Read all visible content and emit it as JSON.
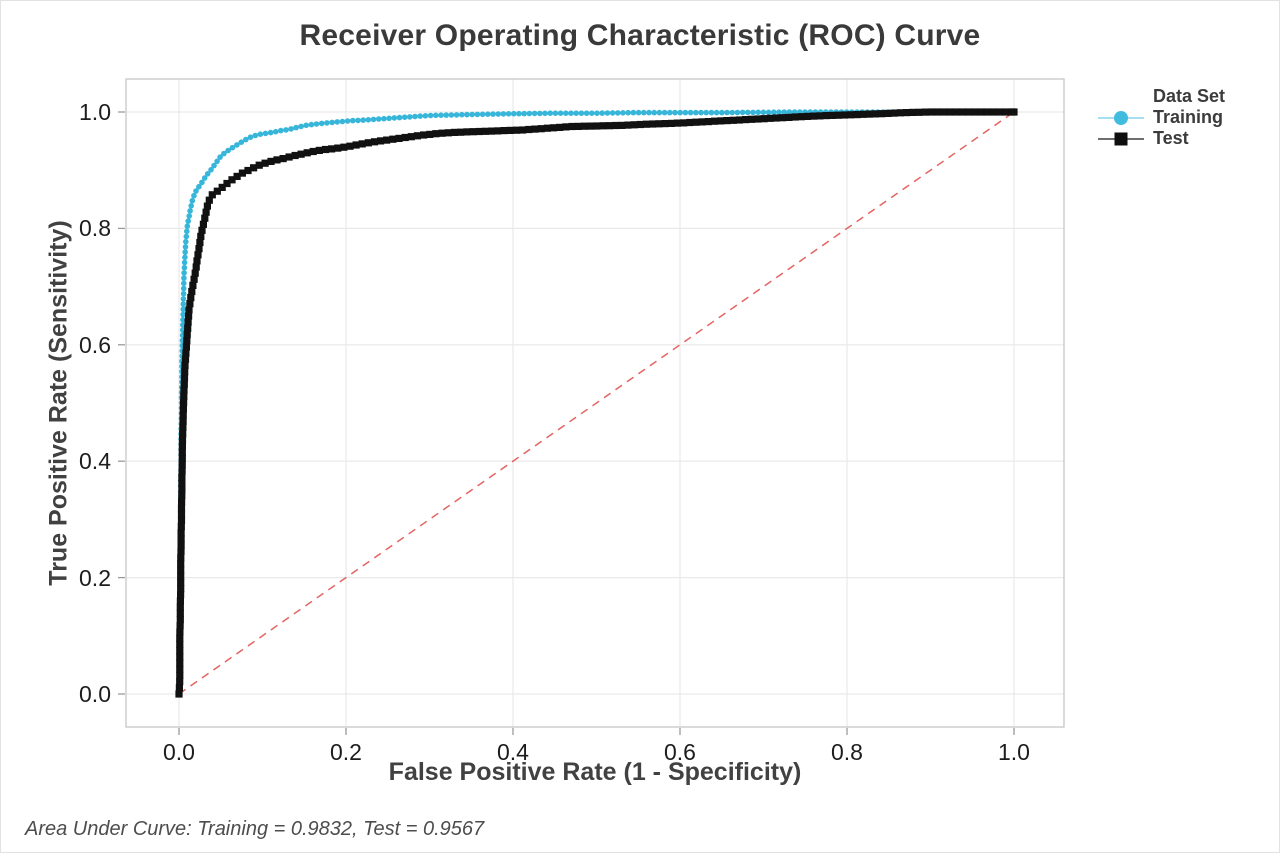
{
  "header": {
    "title": "Receiver Operating Characteristic (ROC) Curve"
  },
  "axes": {
    "x": {
      "label": "False Positive Rate (1 - Specificity)"
    },
    "y": {
      "label": "True Positive Rate (Sensitivity)"
    }
  },
  "legend": {
    "title": "Data Set",
    "entries": [
      {
        "label": "Training",
        "marker": "circle",
        "marker_color": "#3fbcde",
        "line_color": "#a8dff0"
      },
      {
        "label": "Test",
        "marker": "square",
        "marker_color": "#0f0f0f",
        "line_color": "#6f6f6f"
      }
    ]
  },
  "footer": {
    "text": "Area Under Curve: Training = 0.9832, Test = 0.9567",
    "auc_training": "0.9832",
    "auc_test": "0.9567"
  },
  "colors": {
    "grid": "#e9e9e9",
    "plot_border": "#c6c6c6",
    "tick_mark": "#9a9a9a",
    "reference_line": "#e25451",
    "training": "#38b6da",
    "test": "#111111"
  },
  "chart_data": {
    "type": "line",
    "title": "Receiver Operating Characteristic (ROC) Curve",
    "xlabel": "False Positive Rate (1 - Specificity)",
    "ylabel": "True Positive Rate (Sensitivity)",
    "xlim": [
      0,
      1
    ],
    "ylim": [
      0,
      1
    ],
    "xticks": [
      0.0,
      0.2,
      0.4,
      0.6,
      0.8,
      1.0
    ],
    "yticks": [
      0.0,
      0.2,
      0.4,
      0.6,
      0.8,
      1.0
    ],
    "grid": true,
    "legend_position": "right",
    "legend_title": "Data Set",
    "reference_line": {
      "type": "diagonal",
      "from": [
        0,
        0
      ],
      "to": [
        1,
        1
      ],
      "style": "dashed",
      "color": "#e25451"
    },
    "annotation": "Area Under Curve: Training = 0.9832, Test = 0.9567",
    "auc": {
      "Training": 0.9832,
      "Test": 0.9567
    },
    "series": [
      {
        "name": "Training",
        "marker": "circle",
        "color": "#38b6da",
        "points": [
          [
            0,
            0
          ],
          [
            0.001,
            0.03
          ],
          [
            0.001,
            0.06
          ],
          [
            0.001,
            0.09
          ],
          [
            0.001,
            0.12
          ],
          [
            0.001,
            0.15
          ],
          [
            0.0015,
            0.18
          ],
          [
            0.0015,
            0.21
          ],
          [
            0.0015,
            0.24
          ],
          [
            0.002,
            0.27
          ],
          [
            0.002,
            0.3
          ],
          [
            0.002,
            0.33
          ],
          [
            0.002,
            0.36
          ],
          [
            0.0025,
            0.39
          ],
          [
            0.0025,
            0.42
          ],
          [
            0.0025,
            0.45
          ],
          [
            0.003,
            0.48
          ],
          [
            0.003,
            0.51
          ],
          [
            0.0035,
            0.54
          ],
          [
            0.0035,
            0.57
          ],
          [
            0.004,
            0.6
          ],
          [
            0.0045,
            0.63
          ],
          [
            0.005,
            0.66
          ],
          [
            0.0055,
            0.69
          ],
          [
            0.006,
            0.72
          ],
          [
            0.007,
            0.75
          ],
          [
            0.008,
            0.775
          ],
          [
            0.009,
            0.79
          ],
          [
            0.01,
            0.805
          ],
          [
            0.012,
            0.82
          ],
          [
            0.014,
            0.835
          ],
          [
            0.016,
            0.848
          ],
          [
            0.018,
            0.857
          ],
          [
            0.021,
            0.866
          ],
          [
            0.024,
            0.872
          ],
          [
            0.027,
            0.878
          ],
          [
            0.03,
            0.885
          ],
          [
            0.034,
            0.893
          ],
          [
            0.038,
            0.9
          ],
          [
            0.042,
            0.908
          ],
          [
            0.046,
            0.916
          ],
          [
            0.05,
            0.924
          ],
          [
            0.056,
            0.931
          ],
          [
            0.062,
            0.937
          ],
          [
            0.07,
            0.944
          ],
          [
            0.078,
            0.951
          ],
          [
            0.086,
            0.957
          ],
          [
            0.094,
            0.961
          ],
          [
            0.102,
            0.963
          ],
          [
            0.112,
            0.965
          ],
          [
            0.122,
            0.968
          ],
          [
            0.132,
            0.97
          ],
          [
            0.142,
            0.974
          ],
          [
            0.152,
            0.977
          ],
          [
            0.162,
            0.979
          ],
          [
            0.175,
            0.981
          ],
          [
            0.19,
            0.983
          ],
          [
            0.205,
            0.985
          ],
          [
            0.22,
            0.986
          ],
          [
            0.24,
            0.988
          ],
          [
            0.26,
            0.99
          ],
          [
            0.28,
            0.992
          ],
          [
            0.3,
            0.994
          ],
          [
            0.33,
            0.995
          ],
          [
            0.36,
            0.996
          ],
          [
            0.4,
            0.997
          ],
          [
            0.45,
            0.998
          ],
          [
            0.5,
            0.998
          ],
          [
            0.55,
            0.999
          ],
          [
            0.6,
            0.999
          ],
          [
            0.65,
            0.999
          ],
          [
            0.7,
            0.9995
          ],
          [
            0.75,
            1.0
          ],
          [
            0.8,
            1.0
          ],
          [
            0.85,
            1.0
          ],
          [
            0.9,
            1.0
          ],
          [
            0.95,
            1.0
          ],
          [
            1.0,
            1.0
          ]
        ]
      },
      {
        "name": "Test",
        "marker": "square",
        "color": "#111111",
        "points": [
          [
            0,
            0
          ],
          [
            0.001,
            0.025
          ],
          [
            0.001,
            0.05
          ],
          [
            0.001,
            0.075
          ],
          [
            0.001,
            0.1
          ],
          [
            0.0015,
            0.125
          ],
          [
            0.0015,
            0.15
          ],
          [
            0.002,
            0.175
          ],
          [
            0.002,
            0.2
          ],
          [
            0.002,
            0.225
          ],
          [
            0.0025,
            0.25
          ],
          [
            0.0025,
            0.275
          ],
          [
            0.003,
            0.3
          ],
          [
            0.003,
            0.325
          ],
          [
            0.0035,
            0.35
          ],
          [
            0.0035,
            0.375
          ],
          [
            0.004,
            0.4
          ],
          [
            0.004,
            0.425
          ],
          [
            0.0045,
            0.45
          ],
          [
            0.005,
            0.475
          ],
          [
            0.0055,
            0.5
          ],
          [
            0.006,
            0.52
          ],
          [
            0.0065,
            0.54
          ],
          [
            0.007,
            0.56
          ],
          [
            0.008,
            0.58
          ],
          [
            0.009,
            0.6
          ],
          [
            0.01,
            0.62
          ],
          [
            0.011,
            0.64
          ],
          [
            0.012,
            0.66
          ],
          [
            0.014,
            0.68
          ],
          [
            0.016,
            0.697
          ],
          [
            0.018,
            0.712
          ],
          [
            0.02,
            0.728
          ],
          [
            0.022,
            0.748
          ],
          [
            0.024,
            0.766
          ],
          [
            0.026,
            0.785
          ],
          [
            0.028,
            0.8
          ],
          [
            0.031,
            0.818
          ],
          [
            0.034,
            0.838
          ],
          [
            0.037,
            0.852
          ],
          [
            0.04,
            0.858
          ],
          [
            0.044,
            0.862
          ],
          [
            0.048,
            0.866
          ],
          [
            0.053,
            0.872
          ],
          [
            0.06,
            0.88
          ],
          [
            0.068,
            0.888
          ],
          [
            0.076,
            0.895
          ],
          [
            0.085,
            0.901
          ],
          [
            0.095,
            0.908
          ],
          [
            0.105,
            0.913
          ],
          [
            0.115,
            0.917
          ],
          [
            0.125,
            0.92
          ],
          [
            0.135,
            0.924
          ],
          [
            0.148,
            0.928
          ],
          [
            0.16,
            0.932
          ],
          [
            0.172,
            0.935
          ],
          [
            0.185,
            0.937
          ],
          [
            0.2,
            0.94
          ],
          [
            0.215,
            0.944
          ],
          [
            0.23,
            0.948
          ],
          [
            0.25,
            0.952
          ],
          [
            0.27,
            0.956
          ],
          [
            0.29,
            0.96
          ],
          [
            0.31,
            0.963
          ],
          [
            0.33,
            0.965
          ],
          [
            0.35,
            0.966
          ],
          [
            0.37,
            0.967
          ],
          [
            0.39,
            0.968
          ],
          [
            0.41,
            0.969
          ],
          [
            0.43,
            0.971
          ],
          [
            0.45,
            0.973
          ],
          [
            0.47,
            0.975
          ],
          [
            0.5,
            0.976
          ],
          [
            0.53,
            0.977
          ],
          [
            0.56,
            0.979
          ],
          [
            0.6,
            0.981
          ],
          [
            0.64,
            0.984
          ],
          [
            0.68,
            0.987
          ],
          [
            0.72,
            0.99
          ],
          [
            0.76,
            0.993
          ],
          [
            0.8,
            0.995
          ],
          [
            0.84,
            0.997
          ],
          [
            0.87,
            0.999
          ],
          [
            0.9,
            1.0
          ],
          [
            0.93,
            1.0
          ],
          [
            0.96,
            1.0
          ],
          [
            1.0,
            1.0
          ]
        ]
      }
    ]
  }
}
